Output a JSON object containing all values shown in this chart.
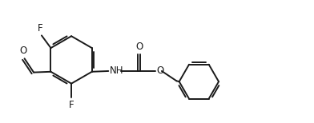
{
  "bg_color": "#ffffff",
  "line_color": "#1a1a1a",
  "line_width": 1.4,
  "font_size": 8.5,
  "fig_width": 3.92,
  "fig_height": 1.54,
  "dpi": 100,
  "xlim": [
    0,
    9.5
  ],
  "ylim": [
    0,
    3.7
  ]
}
